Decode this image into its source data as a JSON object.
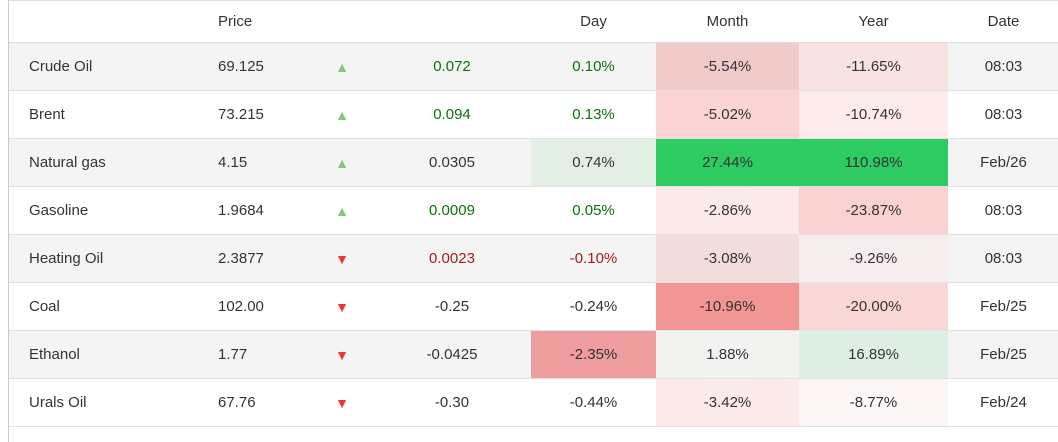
{
  "table": {
    "headers": {
      "name": "",
      "price": "Price",
      "day": "Day",
      "month": "Month",
      "year": "Year",
      "date": "Date"
    },
    "icons": {
      "up": "▲",
      "down": "▼"
    },
    "palette": {
      "text": "#333333",
      "green_text": "#0b720b",
      "red_text": "#9e1b1b",
      "up_arrow": "#85c57d",
      "down_arrow": "#e23b3b",
      "strong_green_bg": "#2eca62",
      "zebra_row_bg": "#f4f4f4",
      "row_border": "#e2e2e2",
      "left_border": "#cccccc"
    },
    "rows": [
      {
        "name": "Crude Oil",
        "price": "69.125",
        "direction": "up",
        "change": "0.072",
        "change_color": "green_text",
        "day": "0.10%",
        "day_color": "green_text",
        "day_bg": null,
        "month": "-5.54%",
        "month_bg": "#f1caca",
        "year": "-11.65%",
        "year_bg": "#f8e2e2",
        "date": "08:03"
      },
      {
        "name": "Brent",
        "price": "73.215",
        "direction": "up",
        "change": "0.094",
        "change_color": "green_text",
        "day": "0.13%",
        "day_color": "green_text",
        "day_bg": null,
        "month": "-5.02%",
        "month_bg": "#fbd5d5",
        "year": "-10.74%",
        "year_bg": "#fdeaea",
        "date": "08:03"
      },
      {
        "name": "Natural gas",
        "price": "4.15",
        "direction": "up",
        "change": "0.0305",
        "change_color": "text",
        "day": "0.74%",
        "day_color": "text",
        "day_bg": "#e3efe5",
        "month": "27.44%",
        "month_bg": "#2eca62",
        "year": "110.98%",
        "year_bg": "#2eca62",
        "date": "Feb/26"
      },
      {
        "name": "Gasoline",
        "price": "1.9684",
        "direction": "up",
        "change": "0.0009",
        "change_color": "green_text",
        "day": "0.05%",
        "day_color": "green_text",
        "day_bg": null,
        "month": "-2.86%",
        "month_bg": "#fce9e9",
        "year": "-23.87%",
        "year_bg": "#f9d1d1",
        "date": "08:03"
      },
      {
        "name": "Heating Oil",
        "price": "2.3877",
        "direction": "down",
        "change": "0.0023",
        "change_color": "red_text",
        "day": "-0.10%",
        "day_color": "red_text",
        "day_bg": null,
        "month": "-3.08%",
        "month_bg": "#f2dcdc",
        "year": "-9.26%",
        "year_bg": "#f6eeee",
        "date": "08:03"
      },
      {
        "name": "Coal",
        "price": "102.00",
        "direction": "down",
        "change": "-0.25",
        "change_color": "text",
        "day": "-0.24%",
        "day_color": "text",
        "day_bg": null,
        "month": "-10.96%",
        "month_bg": "#f29595",
        "year": "-20.00%",
        "year_bg": "#fad7d7",
        "date": "Feb/25"
      },
      {
        "name": "Ethanol",
        "price": "1.77",
        "direction": "down",
        "change": "-0.0425",
        "change_color": "text",
        "day": "-2.35%",
        "day_color": "text",
        "day_bg": "#ee9e9e",
        "month": "1.88%",
        "month_bg": "#f2f3f1",
        "year": "16.89%",
        "year_bg": "#deeee3",
        "date": "Feb/25"
      },
      {
        "name": "Urals Oil",
        "price": "67.76",
        "direction": "down",
        "change": "-0.30",
        "change_color": "text",
        "day": "-0.44%",
        "day_color": "text",
        "day_bg": null,
        "month": "-3.42%",
        "month_bg": "#fce9e9",
        "year": "-8.77%",
        "year_bg": "#fdf6f6",
        "date": "Feb/24"
      }
    ]
  }
}
